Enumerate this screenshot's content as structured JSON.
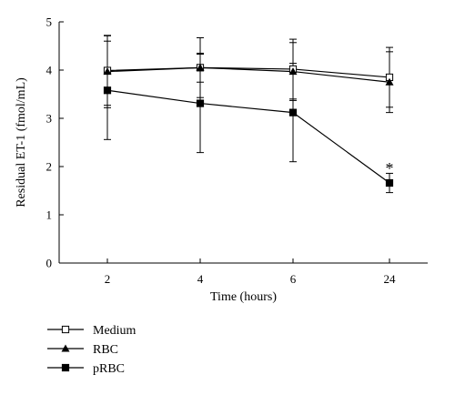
{
  "chart_data": {
    "type": "line",
    "title": "",
    "xlabel": "Time (hours)",
    "ylabel": "Residual ET-1 (fmol/mL)",
    "categories": [
      "2",
      "4",
      "6",
      "24"
    ],
    "ylim": [
      0,
      5
    ],
    "yticks": [
      "0",
      "1",
      "2",
      "3",
      "4",
      "5"
    ],
    "grid": false,
    "legend_position": "bottom-left",
    "series": [
      {
        "name": "Medium",
        "marker": "square-open",
        "values": [
          3.99,
          4.05,
          4.02,
          3.85
        ],
        "errors": [
          0.72,
          0.3,
          0.62,
          0.62
        ]
      },
      {
        "name": "RBC",
        "marker": "triangle",
        "values": [
          3.97,
          4.05,
          3.97,
          3.75
        ],
        "errors": [
          0.75,
          0.62,
          0.6,
          0.63
        ]
      },
      {
        "name": "pRBC",
        "marker": "square-filled",
        "values": [
          3.58,
          3.31,
          3.12,
          1.66
        ],
        "errors": [
          1.02,
          1.02,
          1.02,
          0.2
        ]
      }
    ],
    "annotations": [
      {
        "text": "*",
        "category": "24",
        "y": 2.0
      }
    ]
  }
}
